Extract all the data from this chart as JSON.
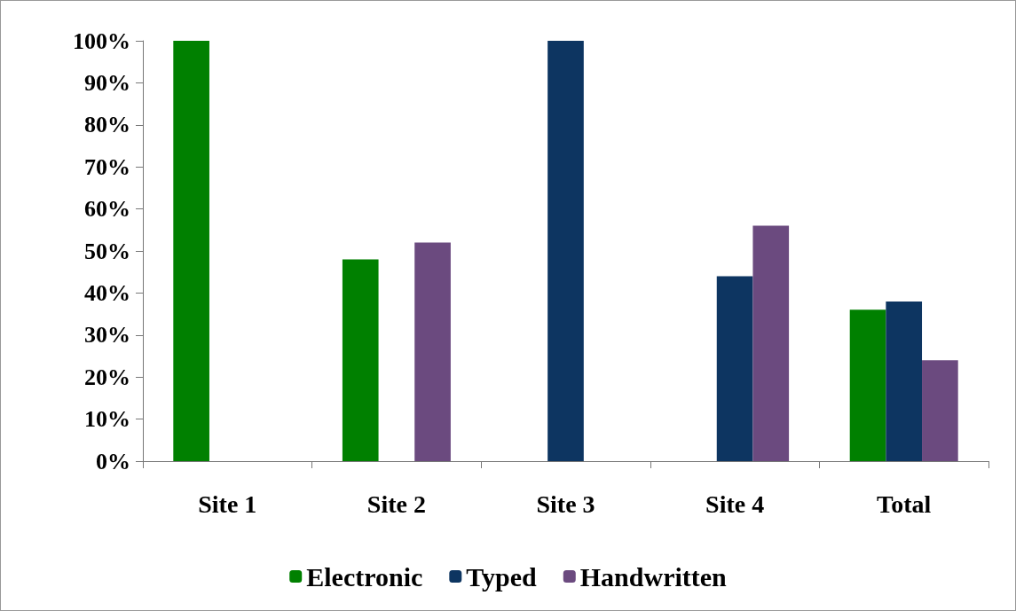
{
  "chart_data": {
    "type": "bar",
    "categories": [
      "Site 1",
      "Site 2",
      "Site 3",
      "Site 4",
      "Total"
    ],
    "series": [
      {
        "name": "Electronic",
        "color": "#008000",
        "values": [
          100,
          48,
          0,
          0,
          36
        ]
      },
      {
        "name": "Typed",
        "color": "#0d3561",
        "values": [
          0,
          0,
          100,
          44,
          38
        ]
      },
      {
        "name": "Handwritten",
        "color": "#6b4a7f",
        "values": [
          0,
          52,
          0,
          56,
          24
        ]
      }
    ],
    "ylim": [
      0,
      100
    ],
    "yticks": [
      {
        "value": 0,
        "label": "0%"
      },
      {
        "value": 10,
        "label": "10%"
      },
      {
        "value": 20,
        "label": "20%"
      },
      {
        "value": 30,
        "label": "30%"
      },
      {
        "value": 40,
        "label": "40%"
      },
      {
        "value": 50,
        "label": "50%"
      },
      {
        "value": 60,
        "label": "60%"
      },
      {
        "value": 70,
        "label": "70%"
      },
      {
        "value": 80,
        "label": "80%"
      },
      {
        "value": 90,
        "label": "90%"
      },
      {
        "value": 100,
        "label": "100%"
      }
    ],
    "grid": false,
    "legend": "bottom"
  }
}
